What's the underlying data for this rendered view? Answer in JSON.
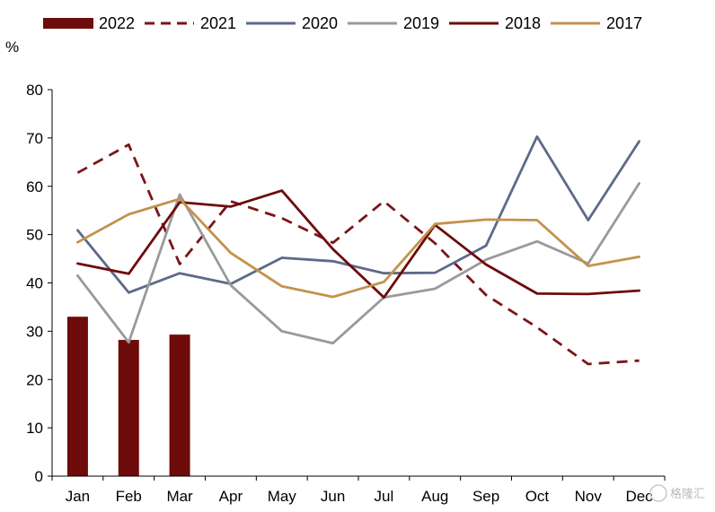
{
  "watermark": "格隆汇",
  "chart_data": {
    "type": "bar+line",
    "y_unit": "%",
    "ylim": [
      0,
      80
    ],
    "yticks": [
      0,
      10,
      20,
      30,
      40,
      50,
      60,
      70,
      80
    ],
    "grid": false,
    "legend_position": "top",
    "categories": [
      "Jan",
      "Feb",
      "Mar",
      "Apr",
      "May",
      "Jun",
      "Jul",
      "Aug",
      "Sep",
      "Oct",
      "Nov",
      "Dec"
    ],
    "bar_series": {
      "name": "2022",
      "color": "#6e0b0b",
      "values": [
        33.0,
        28.2,
        29.3
      ]
    },
    "line_series": [
      {
        "name": "2021",
        "color": "#7a1518",
        "dash": true,
        "values": [
          62.8,
          68.6,
          43.9,
          56.9,
          53.4,
          48.3,
          56.9,
          48.2,
          37.5,
          30.8,
          23.2,
          23.9
        ]
      },
      {
        "name": "2020",
        "color": "#5d6a88",
        "dash": false,
        "values": [
          50.9,
          38.0,
          42.0,
          39.8,
          45.2,
          44.5,
          42.0,
          42.1,
          47.7,
          70.3,
          53.0,
          69.3
        ]
      },
      {
        "name": "2019",
        "color": "#9a9a9a",
        "dash": false,
        "values": [
          41.5,
          27.7,
          58.3,
          39.5,
          30.0,
          27.5,
          37.0,
          38.8,
          44.8,
          48.6,
          44.0,
          60.6
        ]
      },
      {
        "name": "2018",
        "color": "#6e0b0b",
        "dash": false,
        "values": [
          44.0,
          41.9,
          56.7,
          55.8,
          59.1,
          47.0,
          37.0,
          52.0,
          43.8,
          37.8,
          37.7,
          38.4
        ]
      },
      {
        "name": "2017",
        "color": "#c4924c",
        "dash": false,
        "values": [
          48.4,
          54.2,
          57.4,
          46.2,
          39.3,
          37.1,
          40.2,
          52.2,
          53.1,
          53.0,
          43.5,
          45.4
        ]
      }
    ]
  }
}
